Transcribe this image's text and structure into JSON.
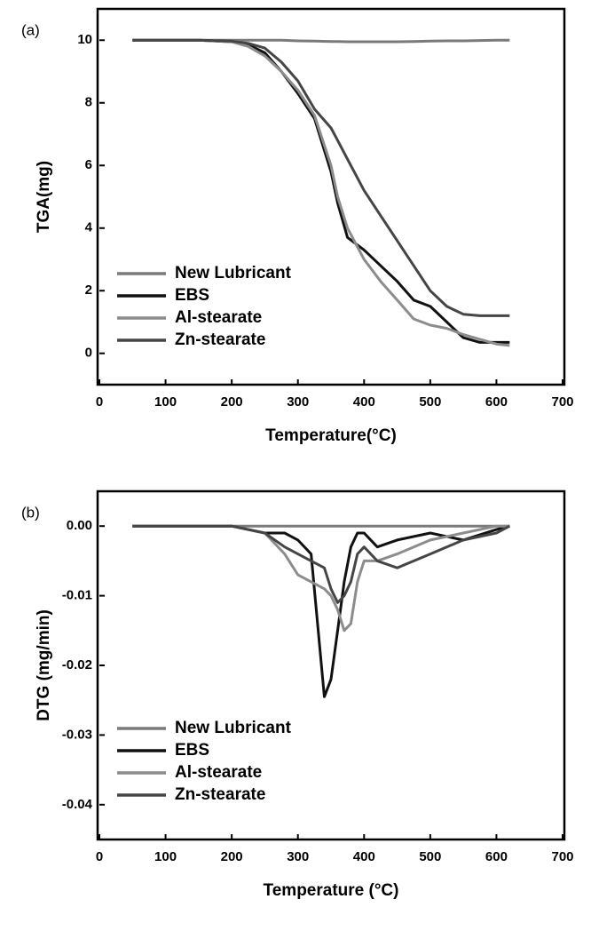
{
  "chart_data": [
    {
      "type": "line",
      "panel_label": "(a)",
      "x_label": "Temperature(°C)",
      "y_label": "TGA(mg)",
      "x": [
        50,
        100,
        150,
        200,
        225,
        250,
        275,
        300,
        325,
        350,
        360,
        375,
        400,
        425,
        450,
        475,
        500,
        525,
        550,
        575,
        600,
        620
      ],
      "series": [
        {
          "name": "New Lubricant",
          "color": "#7a7a7a",
          "values": [
            10,
            10,
            10,
            10,
            10,
            10,
            10,
            9.98,
            9.97,
            9.96,
            9.96,
            9.95,
            9.95,
            9.95,
            9.95,
            9.96,
            9.97,
            9.98,
            9.98,
            9.99,
            10,
            10
          ]
        },
        {
          "name": "EBS",
          "color": "#111111",
          "values": [
            10,
            10,
            10,
            9.95,
            9.85,
            9.6,
            9.0,
            8.3,
            7.5,
            5.8,
            4.8,
            3.7,
            3.3,
            2.8,
            2.3,
            1.7,
            1.5,
            1.0,
            0.5,
            0.35,
            0.35,
            0.35
          ]
        },
        {
          "name": "Al-stearate",
          "color": "#8c8c8c",
          "values": [
            10,
            10,
            10,
            9.95,
            9.8,
            9.5,
            9.0,
            8.4,
            7.6,
            6.0,
            5.0,
            4.0,
            3.0,
            2.3,
            1.7,
            1.1,
            0.9,
            0.8,
            0.6,
            0.45,
            0.3,
            0.25
          ]
        },
        {
          "name": "Zn-stearate",
          "color": "#454545",
          "values": [
            10,
            10,
            10,
            9.97,
            9.9,
            9.75,
            9.3,
            8.7,
            7.8,
            7.2,
            6.8,
            6.2,
            5.2,
            4.4,
            3.6,
            2.8,
            2.0,
            1.5,
            1.25,
            1.2,
            1.2,
            1.2
          ]
        }
      ],
      "xlim": [
        0,
        700
      ],
      "xticks": [
        0,
        100,
        200,
        300,
        400,
        500,
        600,
        700
      ],
      "ylim": [
        -1,
        11
      ],
      "yticks": [
        0,
        2,
        4,
        6,
        8,
        10
      ],
      "legend": "lower left"
    },
    {
      "type": "line",
      "panel_label": "(b)",
      "x_label": "Temperature (°C)",
      "y_label": "DTG (mg/min)",
      "x": [
        50,
        100,
        150,
        200,
        250,
        280,
        300,
        320,
        340,
        350,
        360,
        370,
        380,
        390,
        400,
        420,
        450,
        500,
        550,
        600,
        620
      ],
      "series": [
        {
          "name": "New Lubricant",
          "color": "#7a7a7a",
          "values": [
            0,
            0,
            0,
            0,
            0,
            0,
            0,
            0,
            0,
            0,
            0,
            0,
            0,
            0,
            0,
            0,
            0,
            0,
            0,
            0,
            0
          ]
        },
        {
          "name": "EBS",
          "color": "#111111",
          "values": [
            0,
            0,
            0,
            0,
            -0.001,
            -0.001,
            -0.002,
            -0.004,
            -0.0245,
            -0.022,
            -0.015,
            -0.008,
            -0.003,
            -0.001,
            -0.001,
            -0.003,
            -0.002,
            -0.001,
            -0.002,
            -0.0005,
            0
          ]
        },
        {
          "name": "Al-stearate",
          "color": "#8c8c8c",
          "values": [
            0,
            0,
            0,
            0,
            -0.001,
            -0.004,
            -0.007,
            -0.008,
            -0.009,
            -0.01,
            -0.012,
            -0.015,
            -0.014,
            -0.008,
            -0.005,
            -0.005,
            -0.004,
            -0.002,
            -0.001,
            0,
            0
          ]
        },
        {
          "name": "Zn-stearate",
          "color": "#454545",
          "values": [
            0,
            0,
            0,
            0,
            -0.001,
            -0.003,
            -0.004,
            -0.005,
            -0.006,
            -0.009,
            -0.011,
            -0.01,
            -0.008,
            -0.004,
            -0.003,
            -0.005,
            -0.006,
            -0.004,
            -0.002,
            -0.001,
            0
          ]
        }
      ],
      "xlim": [
        0,
        700
      ],
      "xticks": [
        0,
        100,
        200,
        300,
        400,
        500,
        600,
        700
      ],
      "ylim": [
        -0.045,
        0.005
      ],
      "yticks": [
        {
          "value": 0,
          "label": "0.00"
        },
        {
          "value": -0.01,
          "label": "-0.01"
        },
        {
          "value": -0.02,
          "label": "-0.02"
        },
        {
          "value": -0.03,
          "label": "-0.03"
        },
        {
          "value": -0.04,
          "label": "-0.04"
        }
      ],
      "legend": "lower left"
    }
  ]
}
